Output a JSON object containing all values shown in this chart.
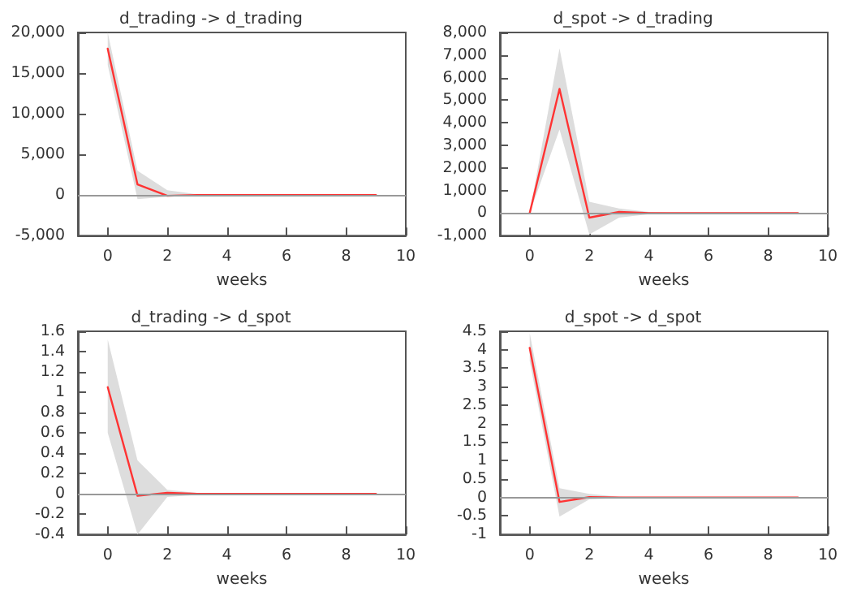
{
  "chart_data": [
    {
      "type": "line",
      "title": "d_trading -> d_trading",
      "xlabel": "weeks",
      "x": [
        0,
        1,
        2,
        3,
        4,
        5,
        6,
        7,
        8,
        9
      ],
      "xlim": [
        -1,
        10
      ],
      "xticks": [
        0,
        2,
        4,
        6,
        8,
        10
      ],
      "ylim": [
        -5000,
        20000
      ],
      "yticks": [
        {
          "value": -5000,
          "label": "-5,000"
        },
        {
          "value": 0,
          "label": "0"
        },
        {
          "value": 5000,
          "label": "5,000"
        },
        {
          "value": 10000,
          "label": "10,000"
        },
        {
          "value": 15000,
          "label": "15,000"
        },
        {
          "value": 20000,
          "label": "20,000"
        }
      ],
      "grid": false,
      "marker": "none",
      "line_style": "solid",
      "ref_lines": [
        {
          "axis": "y",
          "value": 0,
          "color": "#999999"
        }
      ],
      "series": [
        {
          "color": "#ff3333",
          "values": [
            18000,
            1300,
            -100,
            0,
            0,
            0,
            0,
            0,
            0,
            0
          ],
          "lower": [
            16000,
            -500,
            -200,
            -50,
            0,
            0,
            0,
            0,
            0,
            0
          ],
          "upper": [
            20000,
            3000,
            600,
            100,
            0,
            0,
            0,
            0,
            0,
            0
          ]
        }
      ]
    },
    {
      "type": "line",
      "title": "d_spot -> d_trading",
      "xlabel": "weeks",
      "x": [
        0,
        1,
        2,
        3,
        4,
        5,
        6,
        7,
        8,
        9
      ],
      "xlim": [
        -1,
        10
      ],
      "xticks": [
        0,
        2,
        4,
        6,
        8,
        10
      ],
      "ylim": [
        -1000,
        8000
      ],
      "yticks": [
        {
          "value": -1000,
          "label": "-1,000"
        },
        {
          "value": 0,
          "label": "0"
        },
        {
          "value": 1000,
          "label": "1,000"
        },
        {
          "value": 2000,
          "label": "2,000"
        },
        {
          "value": 3000,
          "label": "3,000"
        },
        {
          "value": 4000,
          "label": "4,000"
        },
        {
          "value": 5000,
          "label": "5,000"
        },
        {
          "value": 6000,
          "label": "6,000"
        },
        {
          "value": 7000,
          "label": "7,000"
        },
        {
          "value": 8000,
          "label": "8,000"
        }
      ],
      "grid": false,
      "marker": "none",
      "line_style": "solid",
      "ref_lines": [
        {
          "axis": "y",
          "value": 0,
          "color": "#999999"
        }
      ],
      "series": [
        {
          "color": "#ff3333",
          "values": [
            0,
            5500,
            -200,
            50,
            0,
            0,
            0,
            0,
            0,
            0
          ],
          "lower": [
            0,
            3700,
            -950,
            -200,
            -50,
            0,
            0,
            0,
            0,
            0
          ],
          "upper": [
            0,
            7300,
            500,
            200,
            50,
            0,
            0,
            0,
            0,
            0
          ]
        }
      ]
    },
    {
      "type": "line",
      "title": "d_trading -> d_spot",
      "xlabel": "weeks",
      "x": [
        0,
        1,
        2,
        3,
        4,
        5,
        6,
        7,
        8,
        9
      ],
      "xlim": [
        -1,
        10
      ],
      "xticks": [
        0,
        2,
        4,
        6,
        8,
        10
      ],
      "ylim": [
        -0.4,
        1.6
      ],
      "yticks": [
        -0.4,
        -0.2,
        0,
        0.2,
        0.4,
        0.6,
        0.8,
        1,
        1.2,
        1.4,
        1.6
      ],
      "grid": false,
      "marker": "none",
      "line_style": "solid",
      "ref_lines": [
        {
          "axis": "y",
          "value": 0,
          "color": "#999999"
        }
      ],
      "series": [
        {
          "color": "#ff3333",
          "values": [
            1.05,
            -0.02,
            0.01,
            0,
            0,
            0,
            0,
            0,
            0,
            0
          ],
          "lower": [
            0.6,
            -0.4,
            -0.03,
            -0.01,
            0,
            0,
            0,
            0,
            0,
            0
          ],
          "upper": [
            1.52,
            0.33,
            0.04,
            0.01,
            0,
            0,
            0,
            0,
            0,
            0
          ]
        }
      ]
    },
    {
      "type": "line",
      "title": "d_spot -> d_spot",
      "xlabel": "weeks",
      "x": [
        0,
        1,
        2,
        3,
        4,
        5,
        6,
        7,
        8,
        9
      ],
      "xlim": [
        -1,
        10
      ],
      "xticks": [
        0,
        2,
        4,
        6,
        8,
        10
      ],
      "ylim": [
        -1,
        4.5
      ],
      "yticks": [
        -1,
        -0.5,
        0,
        0.5,
        1,
        1.5,
        2,
        2.5,
        3,
        3.5,
        4,
        4.5
      ],
      "grid": false,
      "marker": "none",
      "line_style": "solid",
      "ref_lines": [
        {
          "axis": "y",
          "value": 0,
          "color": "#999999"
        }
      ],
      "series": [
        {
          "color": "#ff3333",
          "values": [
            4.05,
            -0.12,
            0.01,
            0,
            0,
            0,
            0,
            0,
            0,
            0
          ],
          "lower": [
            3.7,
            -0.52,
            -0.05,
            -0.01,
            0,
            0,
            0,
            0,
            0,
            0
          ],
          "upper": [
            4.45,
            0.25,
            0.1,
            0.02,
            0,
            0,
            0,
            0,
            0,
            0
          ]
        }
      ]
    }
  ]
}
